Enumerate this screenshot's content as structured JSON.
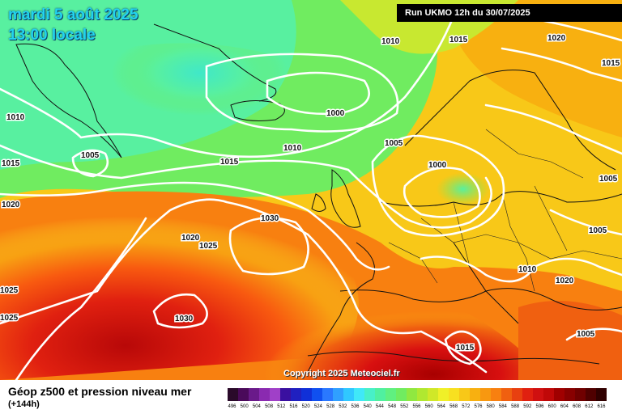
{
  "header": {
    "date": "mardi 5 août 2025",
    "time": "13:00 locale",
    "run": "Run UKMO 12h du 30/07/2025"
  },
  "copyright": "Copyright 2025 Meteociel.fr",
  "footer": {
    "title": "Géop z500 et pression niveau mer",
    "subtitle": "(+144h)"
  },
  "isobar_labels": [
    "1010",
    "1015",
    "1020",
    "1015",
    "1010",
    "1005",
    "1015",
    "1020",
    "1025",
    "1025",
    "1030",
    "1030",
    "1025",
    "1020",
    "1015",
    "1010",
    "1005",
    "1000",
    "1000",
    "1005",
    "1010",
    "1015",
    "1020",
    "1005",
    "1005",
    "1010",
    "1010",
    "1005",
    "1015"
  ],
  "scale": {
    "colors": [
      "#2a0a2a",
      "#4a0a5a",
      "#6a1a8a",
      "#8a2ab0",
      "#a040c8",
      "#3a10a0",
      "#2020c0",
      "#1030d8",
      "#1050f0",
      "#2a78ff",
      "#30a0ff",
      "#30c8ff",
      "#40e8f8",
      "#48f0c8",
      "#50f0a0",
      "#60f080",
      "#70ec60",
      "#90e840",
      "#b0e830",
      "#d0e828",
      "#f0f028",
      "#f8e020",
      "#f8c818",
      "#f8b010",
      "#f89810",
      "#f88010",
      "#f06010",
      "#e84010",
      "#e02010",
      "#d01010",
      "#c00808",
      "#a00000",
      "#880000",
      "#700000",
      "#500000",
      "#300000"
    ],
    "ticks": [
      "496",
      "500",
      "504",
      "508",
      "512",
      "516",
      "520",
      "524",
      "528",
      "532",
      "536",
      "540",
      "544",
      "548",
      "552",
      "556",
      "560",
      "564",
      "568",
      "572",
      "576",
      "580",
      "584",
      "588",
      "592",
      "596",
      "600",
      "604",
      "608",
      "612",
      "616"
    ]
  }
}
